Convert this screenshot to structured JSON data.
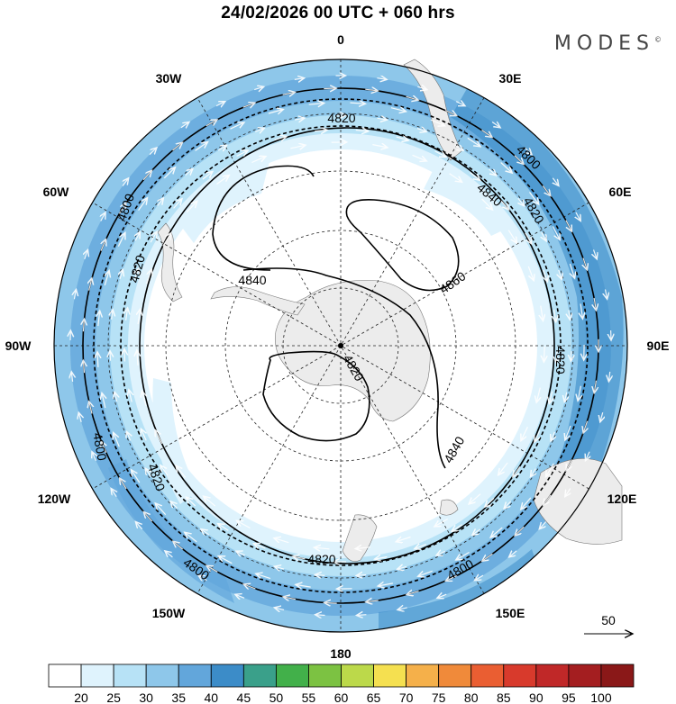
{
  "title": "24/02/2026  00 UTC  + 060 hrs",
  "brand": "MODES",
  "brand_mark": "©",
  "longitude_labels": {
    "lon_0": "0",
    "lon_30e": "30E",
    "lon_60e": "60E",
    "lon_90e": "90E",
    "lon_120e": "120E",
    "lon_150e": "150E",
    "lon_180": "180",
    "lon_150w": "150W",
    "lon_120w": "120W",
    "lon_90w": "90W",
    "lon_60w": "60W",
    "lon_30w": "30W"
  },
  "contour_labels": [
    "4800",
    "4800",
    "4800",
    "4800",
    "4800",
    "4820",
    "4820",
    "4820",
    "4820",
    "4820",
    "4820",
    "4820",
    "4840",
    "4840",
    "4840",
    "4860"
  ],
  "vector_reference": "50",
  "colorbar": {
    "ticks": [
      "20",
      "25",
      "30",
      "35",
      "40",
      "45",
      "50",
      "55",
      "60",
      "65",
      "70",
      "75",
      "80",
      "85",
      "90",
      "95",
      "100"
    ],
    "colors": [
      "#ffffff",
      "#dff3fd",
      "#b7e2f6",
      "#8ec7ea",
      "#62a6db",
      "#3c8cc8",
      "#3aa08a",
      "#42b04a",
      "#7cc242",
      "#bcd94a",
      "#f5e050",
      "#f5b04a",
      "#f08a3a",
      "#ea5e32",
      "#d83a2c",
      "#c02828",
      "#a41e20",
      "#8a1818"
    ]
  }
}
